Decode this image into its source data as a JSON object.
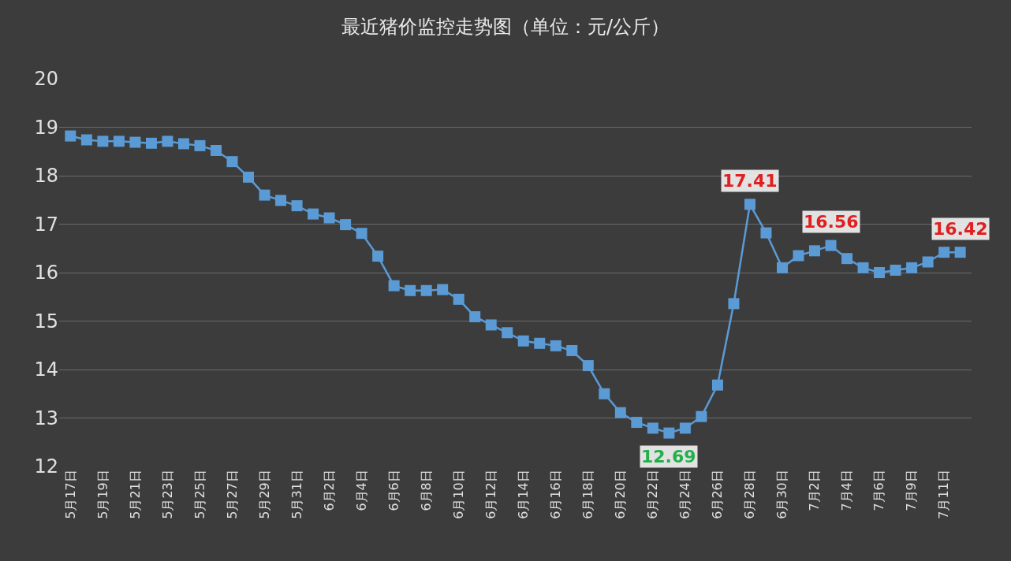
{
  "chart_data": {
    "type": "line",
    "title": "最近猪价监控走势图（单位：元/公斤）",
    "categories": [
      "5月17日",
      null,
      "5月19日",
      null,
      "5月21日",
      null,
      "5月23日",
      null,
      "5月25日",
      null,
      "5月27日",
      null,
      "5月29日",
      null,
      "5月31日",
      null,
      "6月2日",
      null,
      "6月4日",
      null,
      "6月6日",
      null,
      "6月8日",
      null,
      "6月10日",
      null,
      "6月12日",
      null,
      "6月14日",
      null,
      "6月16日",
      null,
      "6月18日",
      null,
      "6月20日",
      null,
      "6月22日",
      null,
      "6月24日",
      null,
      "6月26日",
      null,
      "6月28日",
      null,
      "6月30日",
      null,
      "7月2日",
      null,
      "7月4日",
      null,
      "7月6日",
      null,
      "7月9日",
      null,
      "7月11日",
      null
    ],
    "series": [
      {
        "color": "#5b9bd5",
        "values": [
          18.82,
          18.74,
          18.71,
          18.71,
          18.69,
          18.67,
          18.71,
          18.66,
          18.62,
          18.52,
          18.29,
          17.97,
          17.6,
          17.49,
          17.38,
          17.21,
          17.13,
          16.99,
          16.81,
          16.34,
          15.73,
          15.63,
          15.63,
          15.65,
          15.45,
          15.09,
          14.92,
          14.76,
          14.59,
          14.54,
          14.49,
          14.39,
          14.08,
          13.5,
          13.11,
          12.91,
          12.79,
          12.69,
          12.79,
          13.03,
          13.68,
          15.36,
          17.41,
          16.82,
          16.1,
          16.35,
          16.45,
          16.56,
          16.29,
          16.1,
          16.0,
          16.05,
          16.1,
          16.22,
          16.42,
          16.42
        ],
        "value_labels": [
          null,
          null,
          null,
          null,
          null,
          null,
          null,
          null,
          null,
          null,
          null,
          null,
          null,
          null,
          null,
          null,
          null,
          null,
          null,
          null,
          null,
          null,
          null,
          null,
          null,
          null,
          null,
          null,
          null,
          null,
          null,
          null,
          null,
          null,
          null,
          null,
          null,
          "12.69",
          null,
          null,
          null,
          null,
          "17.41",
          null,
          null,
          null,
          null,
          "16.56",
          null,
          null,
          null,
          null,
          null,
          null,
          null,
          "16.42"
        ]
      }
    ],
    "ylim": [
      12,
      20
    ],
    "yticks": [
      12,
      13,
      14,
      15,
      16,
      17,
      18,
      19,
      20
    ],
    "grid": "y",
    "marker": "square",
    "line_style": "solid"
  }
}
